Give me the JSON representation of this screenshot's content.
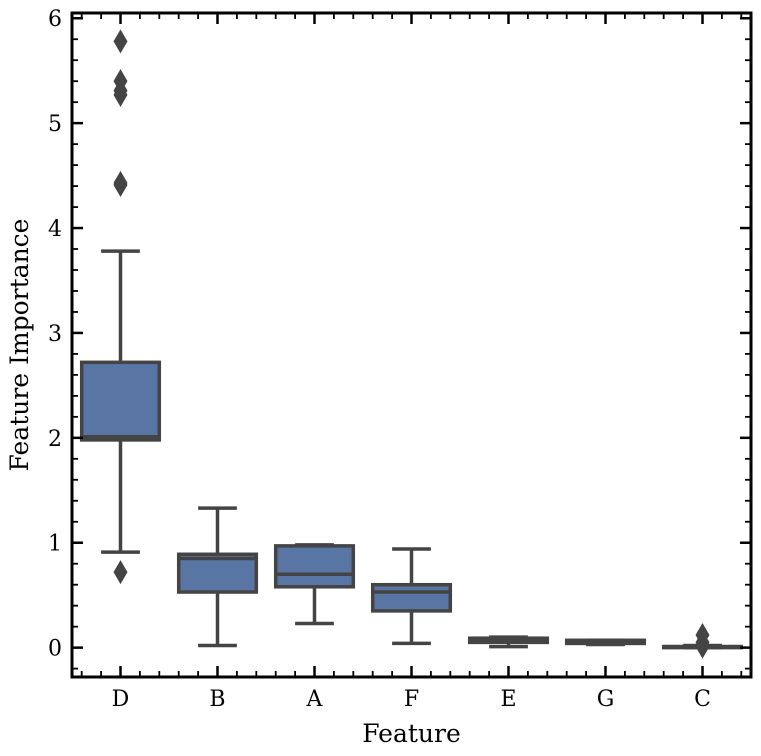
{
  "chart_data": {
    "type": "box",
    "xlabel": "Feature",
    "ylabel": "Feature Importance",
    "ylim": [
      -0.28,
      6.05
    ],
    "yticks": [
      0,
      1,
      2,
      3,
      4,
      5,
      6
    ],
    "ytick_labels": [
      "0",
      "1",
      "2",
      "3",
      "4",
      "5",
      "6"
    ],
    "categories": [
      "D",
      "B",
      "A",
      "F",
      "E",
      "G",
      "C"
    ],
    "boxes": [
      {
        "category": "D",
        "whisker_low": 0.91,
        "q1": 1.98,
        "median": 2.01,
        "q3": 2.72,
        "whisker_high": 3.78,
        "outliers": [
          0.72,
          4.41,
          4.43,
          5.27,
          5.31,
          5.4,
          5.78
        ]
      },
      {
        "category": "B",
        "whisker_low": 0.02,
        "q1": 0.53,
        "median": 0.85,
        "q3": 0.89,
        "whisker_high": 1.33,
        "outliers": []
      },
      {
        "category": "A",
        "whisker_low": 0.23,
        "q1": 0.58,
        "median": 0.7,
        "q3": 0.97,
        "whisker_high": 0.98,
        "outliers": []
      },
      {
        "category": "F",
        "whisker_low": 0.04,
        "q1": 0.35,
        "median": 0.53,
        "q3": 0.6,
        "whisker_high": 0.94,
        "outliers": []
      },
      {
        "category": "E",
        "whisker_low": 0.01,
        "q1": 0.05,
        "median": 0.08,
        "q3": 0.09,
        "whisker_high": 0.1,
        "outliers": []
      },
      {
        "category": "G",
        "whisker_low": 0.03,
        "q1": 0.04,
        "median": 0.06,
        "q3": 0.07,
        "whisker_high": 0.07,
        "outliers": []
      },
      {
        "category": "C",
        "whisker_low": 0.0,
        "q1": 0.0,
        "median": 0.01,
        "q3": 0.01,
        "whisker_high": 0.02,
        "outliers": [
          0.01,
          0.05,
          0.12
        ]
      }
    ],
    "box_color": "#5975a4",
    "line_color": "#444444",
    "grid": false,
    "ticks_direction": "in",
    "minor_ticks": true
  }
}
